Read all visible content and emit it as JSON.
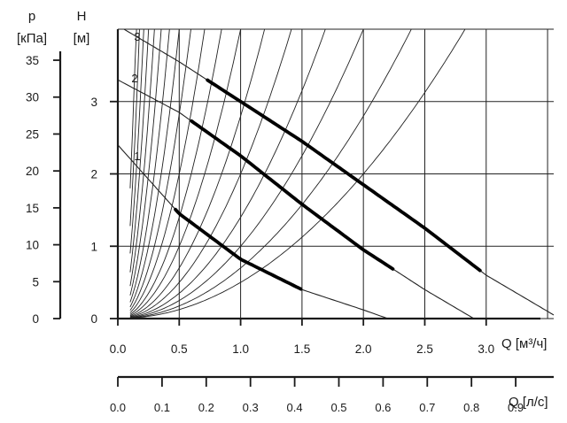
{
  "chart_data": {
    "type": "line",
    "p_axis": {
      "label_symbol": "p",
      "label_unit": "[кПа]",
      "ticks": [
        "0",
        "5",
        "10",
        "15",
        "20",
        "25",
        "30",
        "35"
      ],
      "range": [
        0,
        39.2
      ]
    },
    "h_axis": {
      "label_symbol": "H",
      "label_unit": "[м]",
      "ticks": [
        "0",
        "1",
        "2",
        "3"
      ],
      "range": [
        0,
        4
      ]
    },
    "q_axis": {
      "label": "Q [м³/ч]",
      "ticks": [
        "0.0",
        "0.5",
        "1.0",
        "1.5",
        "2.0",
        "2.5",
        "3.0"
      ],
      "range": [
        0,
        3.55
      ]
    },
    "q_ls_axis": {
      "label": "Q [л/с]",
      "ticks": [
        "0.0",
        "0.1",
        "0.2",
        "0.3",
        "0.4",
        "0.5",
        "0.6",
        "0.7",
        "0.8",
        "0.9"
      ],
      "range": [
        0,
        0.986
      ]
    },
    "grid": true,
    "series": [
      {
        "name": "1",
        "curve": [
          [
            0,
            2.4
          ],
          [
            0.5,
            1.45
          ],
          [
            1.0,
            0.82
          ],
          [
            1.5,
            0.4
          ],
          [
            2.0,
            0.12
          ],
          [
            2.2,
            0
          ]
        ],
        "working_range": [
          0.47,
          1.5
        ]
      },
      {
        "name": "2",
        "curve": [
          [
            0,
            3.3
          ],
          [
            0.5,
            2.85
          ],
          [
            1.0,
            2.25
          ],
          [
            1.5,
            1.58
          ],
          [
            2.0,
            0.95
          ],
          [
            2.5,
            0.4
          ],
          [
            2.9,
            0
          ]
        ],
        "working_range": [
          0.6,
          2.25
        ]
      },
      {
        "name": "3",
        "curve": [
          [
            0,
            4.05
          ],
          [
            0.5,
            3.55
          ],
          [
            1.0,
            3.0
          ],
          [
            1.5,
            2.45
          ],
          [
            2.0,
            1.85
          ],
          [
            2.5,
            1.25
          ],
          [
            3.0,
            0.6
          ],
          [
            3.6,
            0
          ]
        ],
        "working_range": [
          0.73,
          2.95
        ]
      }
    ],
    "system_curve_k": [
      0.5,
      0.7,
      1.0,
      1.4,
      2.0,
      2.8,
      4.0,
      5.6,
      8.0,
      11.3,
      16.0,
      22.6,
      32.0,
      45.0,
      64.0,
      90.0,
      128.0,
      180.0
    ]
  }
}
